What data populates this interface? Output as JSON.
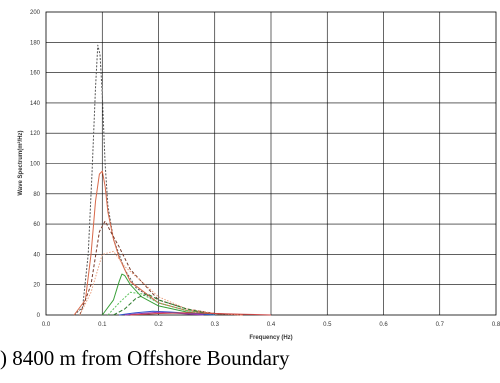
{
  "caption": ") 8400 m from Offshore Boundary",
  "chart_data": {
    "type": "line",
    "xlabel": "Frequency (Hz)",
    "ylabel": "Wave Spectrum(m²/Hz)",
    "xlim": [
      0,
      0.8
    ],
    "ylim": [
      0,
      200
    ],
    "x_ticks": [
      "0.0",
      "0.1",
      "0.2",
      "0.3",
      "0.4",
      "0.5",
      "0.6",
      "0.7",
      "0.8"
    ],
    "y_ticks": [
      "0",
      "20",
      "40",
      "60",
      "80",
      "100",
      "120",
      "140",
      "160",
      "180",
      "200"
    ],
    "grid": true,
    "series": [
      {
        "color": "#555555",
        "dash": "2,1.5",
        "x": [
          0.05,
          0.065,
          0.075,
          0.082,
          0.088,
          0.092,
          0.096,
          0.1,
          0.105,
          0.11,
          0.12,
          0.14,
          0.16,
          0.2,
          0.25,
          0.3,
          0.35
        ],
        "y": [
          0,
          5,
          40,
          95,
          150,
          178,
          172,
          145,
          100,
          72,
          50,
          30,
          18,
          8,
          3,
          1,
          0
        ]
      },
      {
        "color": "#d8694a",
        "dash": "",
        "x": [
          0.05,
          0.07,
          0.08,
          0.088,
          0.095,
          0.1,
          0.105,
          0.11,
          0.12,
          0.13,
          0.15,
          0.2,
          0.25,
          0.3,
          0.35
        ],
        "y": [
          0,
          10,
          40,
          75,
          93,
          95,
          85,
          68,
          50,
          38,
          22,
          8,
          3,
          1,
          0
        ]
      },
      {
        "color": "#7a3a2a",
        "dash": "3,2",
        "x": [
          0.06,
          0.08,
          0.095,
          0.105,
          0.115,
          0.13,
          0.15,
          0.2,
          0.25,
          0.3,
          0.35
        ],
        "y": [
          0,
          20,
          55,
          62,
          55,
          45,
          30,
          10,
          4,
          1,
          0
        ]
      },
      {
        "color": "#e8a080",
        "dash": "1.5,1.5",
        "x": [
          0.06,
          0.08,
          0.1,
          0.12,
          0.14,
          0.2,
          0.25,
          0.3,
          0.35
        ],
        "y": [
          0,
          15,
          40,
          42,
          32,
          12,
          4,
          1,
          0
        ]
      },
      {
        "color": "#39a039",
        "dash": "",
        "x": [
          0.1,
          0.12,
          0.13,
          0.135,
          0.14,
          0.15,
          0.17,
          0.2,
          0.25,
          0.3
        ],
        "y": [
          0,
          10,
          22,
          27,
          26,
          20,
          12,
          6,
          2,
          0
        ]
      },
      {
        "color": "#5cc35c",
        "dash": "2,1.5",
        "x": [
          0.11,
          0.13,
          0.15,
          0.17,
          0.2,
          0.25,
          0.3
        ],
        "y": [
          0,
          8,
          15,
          14,
          8,
          3,
          0
        ]
      },
      {
        "color": "#2e7d2e",
        "dash": "4,2",
        "x": [
          0.12,
          0.14,
          0.16,
          0.18,
          0.2,
          0.25,
          0.3
        ],
        "y": [
          0,
          4,
          11,
          14,
          10,
          4,
          0
        ]
      },
      {
        "color": "#3355cc",
        "dash": "",
        "x": [
          0.13,
          0.16,
          0.19,
          0.22,
          0.26,
          0.3
        ],
        "y": [
          0,
          1.5,
          2.5,
          2,
          1,
          0
        ]
      },
      {
        "color": "#9933aa",
        "dash": "",
        "x": [
          0.14,
          0.17,
          0.2,
          0.24,
          0.28
        ],
        "y": [
          0,
          1,
          1.8,
          1,
          0
        ]
      },
      {
        "color": "#cc4444",
        "dash": "",
        "x": [
          0.15,
          0.2,
          0.25,
          0.3,
          0.35,
          0.4
        ],
        "y": [
          0,
          1,
          1.5,
          1,
          0.5,
          0
        ]
      }
    ]
  }
}
